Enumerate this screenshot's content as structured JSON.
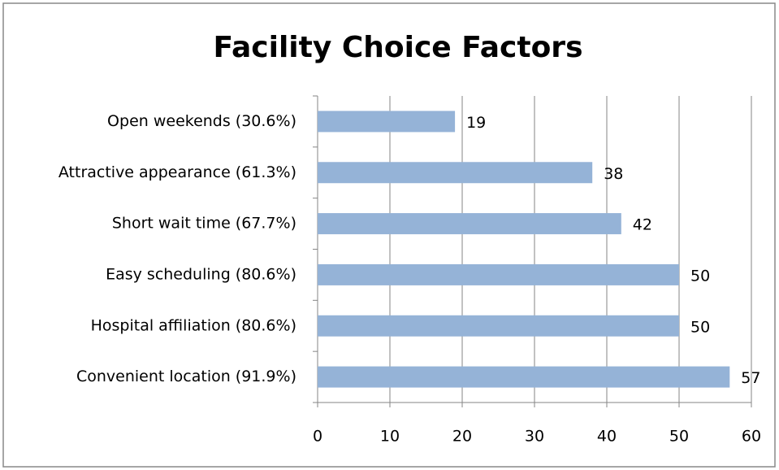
{
  "chart_data": {
    "type": "bar",
    "orientation": "horizontal",
    "title": "Facility Choice Factors",
    "categories": [
      "Open weekends (30.6%)",
      "Attractive appearance (61.3%)",
      "Short wait time (67.7%)",
      "Easy scheduling (80.6%)",
      "Hospital affiliation (80.6%)",
      "Convenient location (91.9%)"
    ],
    "values": [
      19,
      38,
      42,
      50,
      50,
      57
    ],
    "color": "#95b3d7",
    "xlim": [
      0,
      60
    ],
    "xticks": [
      0,
      10,
      20,
      30,
      40,
      50,
      60
    ],
    "grid": true
  }
}
